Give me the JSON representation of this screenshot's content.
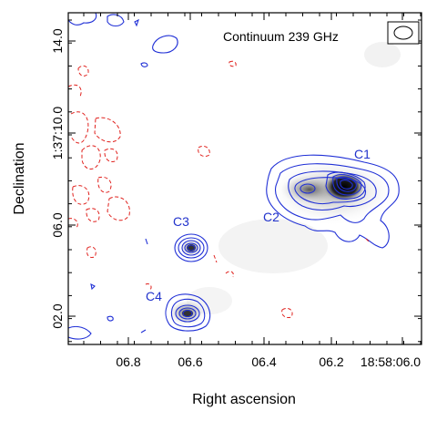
{
  "title": "Continuum 239 GHz",
  "xlabel": "Right ascension",
  "ylabel": "Declination",
  "xticks": [
    "06.8",
    "06.6",
    "06.4",
    "06.2",
    "18:58:06.0"
  ],
  "yticks": [
    "02.0",
    "06.0",
    "1:37:10.0",
    "14.0"
  ],
  "sources": [
    {
      "label": "C1"
    },
    {
      "label": "C2"
    },
    {
      "label": "C3"
    },
    {
      "label": "C4"
    }
  ],
  "colors": {
    "positive_contour": "#1f2fd6",
    "negative_contour": "#e0201c",
    "label": "#2233cc",
    "background": "#ffffff"
  }
}
